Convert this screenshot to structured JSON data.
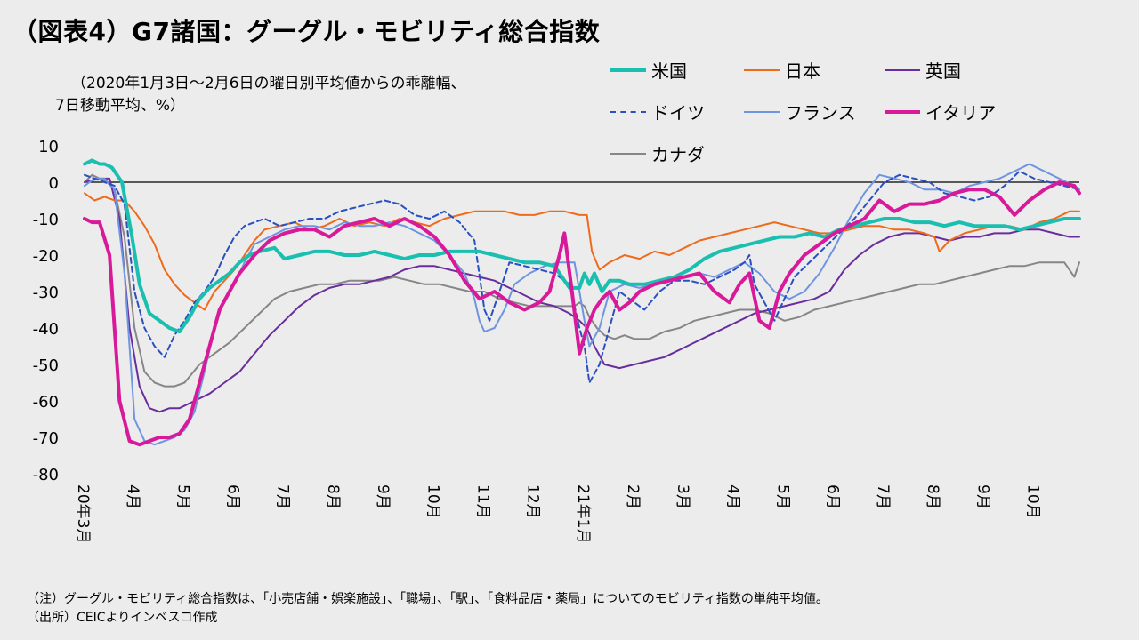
{
  "header": {
    "title": "（図表4）G7諸国：グーグル・モビリティ総合指数",
    "subtitle_line1": "（2020年1月3日～2月6日の曜日別平均値からの乖離幅、",
    "subtitle_line2": "7日移動平均、%）"
  },
  "notes": {
    "note1": "（注）グーグル・モビリティ総合指数は、「小売店舗・娯楽施設」、「職場」、「駅」、「食料品店・薬局」についてのモビリティ指数の単純平均値。",
    "note2": "（出所）CEICよりインベスコ作成"
  },
  "chart_data": {
    "type": "line",
    "title": "（図表4）G7諸国：グーグル・モビリティ総合指数",
    "ylabel": "（2020年1月3日～2月6日の曜日別平均値からの乖離幅、7日移動平均、%）",
    "ylim": [
      -80,
      10
    ],
    "yticks": [
      10,
      0,
      -10,
      -20,
      -30,
      -40,
      -50,
      -60,
      -70,
      -80
    ],
    "x_ticks": [
      "20年3月",
      "4月",
      "5月",
      "6月",
      "7月",
      "8月",
      "9月",
      "10月",
      "11月",
      "12月",
      "21年1月",
      "2月",
      "3月",
      "4月",
      "5月",
      "6月",
      "7月",
      "8月",
      "9月",
      "10月"
    ],
    "x_range": [
      0,
      19.9
    ],
    "legend_position": "top-right",
    "series": [
      {
        "name": "米国",
        "color": "#1bbfb0",
        "dash": "solid",
        "width": 4,
        "x": [
          0,
          0.15,
          0.3,
          0.4,
          0.55,
          0.75,
          0.95,
          1.1,
          1.3,
          1.5,
          1.7,
          1.9,
          2.1,
          2.3,
          2.5,
          2.7,
          2.9,
          3.1,
          3.3,
          3.5,
          3.8,
          4.0,
          4.3,
          4.6,
          4.9,
          5.2,
          5.5,
          5.8,
          6.1,
          6.4,
          6.7,
          7.0,
          7.3,
          7.6,
          7.9,
          8.2,
          8.5,
          8.8,
          9.1,
          9.4,
          9.7,
          9.9,
          10.0,
          10.1,
          10.2,
          10.35,
          10.5,
          10.7,
          10.9,
          11.2,
          11.5,
          11.8,
          12.1,
          12.4,
          12.7,
          13.0,
          13.3,
          13.6,
          13.9,
          14.2,
          14.5,
          14.8,
          15.1,
          15.4,
          15.7,
          16.0,
          16.3,
          16.6,
          16.9,
          17.2,
          17.5,
          17.8,
          18.1,
          18.4,
          18.7,
          19.0,
          19.3,
          19.6,
          19.9
        ],
        "values": [
          5,
          6,
          5,
          5,
          4,
          0,
          -15,
          -28,
          -36,
          -38,
          -40,
          -41,
          -37,
          -32,
          -29,
          -27,
          -25,
          -22,
          -20,
          -19,
          -18,
          -21,
          -20,
          -19,
          -19,
          -20,
          -20,
          -19,
          -20,
          -21,
          -20,
          -20,
          -19,
          -19,
          -19,
          -20,
          -21,
          -22,
          -22,
          -23,
          -29,
          -29,
          -25,
          -28,
          -25,
          -30,
          -27,
          -27,
          -28,
          -28,
          -27,
          -26,
          -24,
          -21,
          -19,
          -18,
          -17,
          -16,
          -15,
          -15,
          -14,
          -15,
          -13,
          -12,
          -11,
          -10,
          -10,
          -11,
          -11,
          -12,
          -11,
          -12,
          -12,
          -12,
          -13,
          -12,
          -11,
          -10,
          -10
        ]
      },
      {
        "name": "日本",
        "color": "#ee6b1c",
        "dash": "solid",
        "width": 2,
        "x": [
          0,
          0.2,
          0.4,
          0.6,
          0.8,
          1.0,
          1.2,
          1.4,
          1.6,
          1.8,
          2.0,
          2.2,
          2.4,
          2.6,
          2.8,
          3.0,
          3.2,
          3.4,
          3.6,
          3.9,
          4.2,
          4.5,
          4.8,
          5.1,
          5.4,
          5.7,
          6.0,
          6.3,
          6.6,
          6.9,
          7.2,
          7.5,
          7.8,
          8.1,
          8.4,
          8.7,
          9.0,
          9.3,
          9.6,
          9.9,
          10.05,
          10.15,
          10.3,
          10.5,
          10.8,
          11.1,
          11.4,
          11.7,
          12.0,
          12.3,
          12.6,
          12.9,
          13.2,
          13.5,
          13.8,
          14.1,
          14.4,
          14.7,
          15.0,
          15.3,
          15.6,
          15.9,
          16.2,
          16.5,
          16.8,
          17.0,
          17.1,
          17.3,
          17.6,
          17.9,
          18.2,
          18.5,
          18.8,
          19.1,
          19.4,
          19.7,
          19.9
        ],
        "values": [
          -3,
          -5,
          -4,
          -5,
          -5,
          -8,
          -12,
          -17,
          -24,
          -28,
          -31,
          -33,
          -35,
          -30,
          -27,
          -24,
          -20,
          -16,
          -13,
          -12,
          -11,
          -13,
          -12,
          -10,
          -12,
          -11,
          -12,
          -10,
          -11,
          -12,
          -10,
          -9,
          -8,
          -8,
          -8,
          -9,
          -9,
          -8,
          -8,
          -9,
          -9,
          -19,
          -24,
          -22,
          -20,
          -21,
          -19,
          -20,
          -18,
          -16,
          -15,
          -14,
          -13,
          -12,
          -11,
          -12,
          -13,
          -14,
          -14,
          -13,
          -12,
          -12,
          -13,
          -13,
          -14,
          -15,
          -19,
          -16,
          -14,
          -13,
          -12,
          -12,
          -13,
          -11,
          -10,
          -8,
          -8
        ]
      },
      {
        "name": "英国",
        "color": "#6a2d9e",
        "dash": "solid",
        "width": 2,
        "x": [
          0,
          0.3,
          0.5,
          0.7,
          0.9,
          1.1,
          1.3,
          1.5,
          1.7,
          1.9,
          2.2,
          2.5,
          2.8,
          3.1,
          3.4,
          3.7,
          4.0,
          4.3,
          4.6,
          4.9,
          5.2,
          5.5,
          5.8,
          6.1,
          6.4,
          6.7,
          7.0,
          7.3,
          7.6,
          7.9,
          8.2,
          8.5,
          8.8,
          9.1,
          9.4,
          9.7,
          9.9,
          10.05,
          10.2,
          10.4,
          10.7,
          11.0,
          11.3,
          11.6,
          11.9,
          12.2,
          12.5,
          12.8,
          13.1,
          13.4,
          13.7,
          14.0,
          14.3,
          14.6,
          14.9,
          15.2,
          15.5,
          15.8,
          16.1,
          16.4,
          16.7,
          17.0,
          17.3,
          17.6,
          17.9,
          18.2,
          18.5,
          18.8,
          19.1,
          19.4,
          19.7,
          19.9
        ],
        "values": [
          0,
          1,
          1,
          -10,
          -40,
          -56,
          -62,
          -63,
          -62,
          -62,
          -60,
          -58,
          -55,
          -52,
          -47,
          -42,
          -38,
          -34,
          -31,
          -29,
          -28,
          -28,
          -27,
          -26,
          -24,
          -23,
          -23,
          -24,
          -25,
          -26,
          -27,
          -29,
          -31,
          -33,
          -34,
          -36,
          -38,
          -40,
          -45,
          -50,
          -51,
          -50,
          -49,
          -48,
          -46,
          -44,
          -42,
          -40,
          -38,
          -36,
          -35,
          -34,
          -33,
          -32,
          -30,
          -24,
          -20,
          -17,
          -15,
          -14,
          -14,
          -15,
          -16,
          -15,
          -15,
          -14,
          -14,
          -13,
          -13,
          -14,
          -15,
          -15
        ]
      },
      {
        "name": "ドイツ",
        "color": "#2a4fc1",
        "dash": "dashed",
        "width": 2,
        "x": [
          0,
          0.2,
          0.4,
          0.6,
          0.8,
          1.0,
          1.2,
          1.4,
          1.6,
          1.8,
          2.0,
          2.2,
          2.4,
          2.6,
          2.8,
          3.0,
          3.2,
          3.4,
          3.6,
          3.9,
          4.2,
          4.5,
          4.8,
          5.1,
          5.4,
          5.7,
          6.0,
          6.3,
          6.6,
          6.9,
          7.2,
          7.5,
          7.8,
          8.0,
          8.1,
          8.3,
          8.5,
          8.8,
          9.1,
          9.4,
          9.7,
          9.9,
          10.0,
          10.1,
          10.3,
          10.5,
          10.7,
          10.9,
          11.2,
          11.5,
          11.8,
          12.1,
          12.4,
          12.7,
          13.0,
          13.2,
          13.3,
          13.4,
          13.6,
          13.8,
          14.0,
          14.2,
          14.5,
          14.8,
          15.1,
          15.4,
          15.7,
          16.0,
          16.3,
          16.6,
          16.9,
          17.2,
          17.5,
          17.8,
          18.1,
          18.4,
          18.7,
          19.0,
          19.3,
          19.6,
          19.9
        ],
        "values": [
          2,
          1,
          0,
          -1,
          -6,
          -30,
          -40,
          -45,
          -48,
          -42,
          -38,
          -33,
          -30,
          -26,
          -20,
          -15,
          -12,
          -11,
          -10,
          -12,
          -11,
          -10,
          -10,
          -8,
          -7,
          -6,
          -5,
          -6,
          -9,
          -10,
          -8,
          -11,
          -16,
          -35,
          -38,
          -30,
          -22,
          -23,
          -24,
          -25,
          -28,
          -40,
          -45,
          -55,
          -50,
          -40,
          -30,
          -32,
          -35,
          -30,
          -27,
          -27,
          -28,
          -26,
          -24,
          -22,
          -20,
          -28,
          -33,
          -38,
          -32,
          -26,
          -22,
          -18,
          -14,
          -10,
          -5,
          0,
          2,
          1,
          0,
          -3,
          -4,
          -5,
          -4,
          -1,
          3,
          1,
          0,
          -1,
          -2
        ]
      },
      {
        "name": "フランス",
        "color": "#6f95e0",
        "dash": "solid",
        "width": 2,
        "x": [
          0,
          0.2,
          0.4,
          0.6,
          0.8,
          1.0,
          1.2,
          1.4,
          1.6,
          1.8,
          2.0,
          2.2,
          2.4,
          2.6,
          2.8,
          3.0,
          3.2,
          3.4,
          3.7,
          4.0,
          4.3,
          4.6,
          4.9,
          5.2,
          5.5,
          5.8,
          6.1,
          6.4,
          6.7,
          7.0,
          7.3,
          7.6,
          7.8,
          7.9,
          8.0,
          8.2,
          8.4,
          8.6,
          8.9,
          9.2,
          9.5,
          9.8,
          9.9,
          10.0,
          10.1,
          10.3,
          10.5,
          10.8,
          11.1,
          11.4,
          11.7,
          12.0,
          12.3,
          12.6,
          12.9,
          13.2,
          13.5,
          13.8,
          14.1,
          14.4,
          14.7,
          15.0,
          15.3,
          15.6,
          15.9,
          16.2,
          16.5,
          16.8,
          17.1,
          17.4,
          17.7,
          18.0,
          18.3,
          18.6,
          18.9,
          19.2,
          19.5,
          19.8,
          19.9
        ],
        "values": [
          -1,
          1,
          1,
          -2,
          -25,
          -65,
          -71,
          -72,
          -71,
          -70,
          -68,
          -63,
          -52,
          -40,
          -32,
          -28,
          -22,
          -17,
          -15,
          -13,
          -12,
          -12,
          -13,
          -11,
          -12,
          -12,
          -11,
          -12,
          -14,
          -16,
          -20,
          -25,
          -32,
          -38,
          -41,
          -40,
          -35,
          -28,
          -25,
          -23,
          -22,
          -22,
          -30,
          -38,
          -45,
          -40,
          -30,
          -28,
          -29,
          -28,
          -27,
          -26,
          -25,
          -26,
          -24,
          -22,
          -25,
          -30,
          -32,
          -30,
          -25,
          -18,
          -10,
          -3,
          2,
          1,
          0,
          -2,
          -2,
          -3,
          -1,
          0,
          1,
          3,
          5,
          3,
          1,
          -1,
          -2
        ]
      },
      {
        "name": "イタリア",
        "color": "#d8199a",
        "dash": "solid",
        "width": 4,
        "x": [
          0,
          0.15,
          0.3,
          0.5,
          0.7,
          0.9,
          1.1,
          1.3,
          1.5,
          1.7,
          1.9,
          2.1,
          2.3,
          2.5,
          2.7,
          2.9,
          3.1,
          3.4,
          3.7,
          4.0,
          4.3,
          4.6,
          4.9,
          5.2,
          5.5,
          5.8,
          6.1,
          6.4,
          6.7,
          7.0,
          7.3,
          7.6,
          7.9,
          8.2,
          8.5,
          8.8,
          9.1,
          9.3,
          9.5,
          9.6,
          9.75,
          9.9,
          10.05,
          10.2,
          10.35,
          10.5,
          10.7,
          10.9,
          11.1,
          11.4,
          11.7,
          12.0,
          12.3,
          12.6,
          12.9,
          13.1,
          13.3,
          13.5,
          13.7,
          13.9,
          14.1,
          14.4,
          14.7,
          15.0,
          15.3,
          15.6,
          15.9,
          16.2,
          16.5,
          16.8,
          17.1,
          17.4,
          17.7,
          18.0,
          18.3,
          18.6,
          18.9,
          19.2,
          19.5,
          19.8,
          19.9
        ],
        "values": [
          -10,
          -11,
          -11,
          -20,
          -60,
          -71,
          -72,
          -71,
          -70,
          -70,
          -69,
          -65,
          -55,
          -45,
          -35,
          -30,
          -25,
          -20,
          -16,
          -14,
          -13,
          -13,
          -15,
          -12,
          -11,
          -10,
          -12,
          -10,
          -12,
          -15,
          -20,
          -27,
          -32,
          -30,
          -33,
          -35,
          -33,
          -30,
          -20,
          -14,
          -30,
          -47,
          -40,
          -35,
          -32,
          -30,
          -35,
          -33,
          -30,
          -28,
          -27,
          -26,
          -25,
          -30,
          -33,
          -28,
          -25,
          -38,
          -40,
          -30,
          -25,
          -20,
          -17,
          -14,
          -12,
          -10,
          -5,
          -8,
          -6,
          -6,
          -5,
          -3,
          -2,
          -2,
          -4,
          -9,
          -5,
          -2,
          0,
          -1,
          -3
        ]
      },
      {
        "name": "カナダ",
        "color": "#868686",
        "dash": "solid",
        "width": 2,
        "x": [
          0,
          0.15,
          0.3,
          0.45,
          0.6,
          0.8,
          1.0,
          1.2,
          1.4,
          1.6,
          1.8,
          2.0,
          2.3,
          2.6,
          2.9,
          3.2,
          3.5,
          3.8,
          4.1,
          4.4,
          4.7,
          5.0,
          5.3,
          5.6,
          5.9,
          6.2,
          6.5,
          6.8,
          7.1,
          7.4,
          7.7,
          8.0,
          8.3,
          8.6,
          8.9,
          9.2,
          9.5,
          9.8,
          9.9,
          10.0,
          10.1,
          10.25,
          10.4,
          10.6,
          10.8,
          11.0,
          11.3,
          11.6,
          11.9,
          12.2,
          12.5,
          12.8,
          13.1,
          13.4,
          13.7,
          14.0,
          14.3,
          14.6,
          14.9,
          15.2,
          15.5,
          15.8,
          16.1,
          16.4,
          16.7,
          17.0,
          17.3,
          17.6,
          17.9,
          18.2,
          18.5,
          18.8,
          19.1,
          19.4,
          19.6,
          19.8,
          19.9
        ],
        "values": [
          0,
          2,
          1,
          0,
          -2,
          -15,
          -40,
          -52,
          -55,
          -56,
          -56,
          -55,
          -50,
          -47,
          -44,
          -40,
          -36,
          -32,
          -30,
          -29,
          -28,
          -28,
          -27,
          -27,
          -27,
          -26,
          -27,
          -28,
          -28,
          -29,
          -30,
          -30,
          -32,
          -33,
          -34,
          -34,
          -34,
          -34,
          -33,
          -34,
          -37,
          -40,
          -42,
          -43,
          -42,
          -43,
          -43,
          -41,
          -40,
          -38,
          -37,
          -36,
          -35,
          -35,
          -36,
          -38,
          -37,
          -35,
          -34,
          -33,
          -32,
          -31,
          -30,
          -29,
          -28,
          -28,
          -27,
          -26,
          -25,
          -24,
          -23,
          -23,
          -22,
          -22,
          -22,
          -26,
          -22
        ]
      }
    ]
  }
}
